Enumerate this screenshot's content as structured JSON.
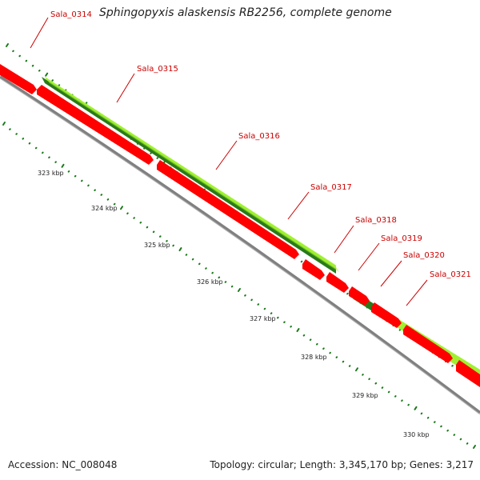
{
  "header": {
    "title": "Sphingopyxis alaskensis RB2256, complete genome"
  },
  "footer": {
    "accession": "Accession: NC_008048",
    "topology": "Topology: circular; Length: 3,345,170 bp; Genes: 3,217"
  },
  "colors": {
    "forward_gene": "#a0f030",
    "forward_gene_dark": "#2a7a1a",
    "reverse_gene": "#ff0000",
    "backbone": "#808080",
    "tick": "#1a7a1a",
    "gene_label": "#cc0000"
  },
  "genes": [
    {
      "name": "Sala_0314"
    },
    {
      "name": "Sala_0315"
    },
    {
      "name": "Sala_0316"
    },
    {
      "name": "Sala_0317"
    },
    {
      "name": "Sala_0318"
    },
    {
      "name": "Sala_0319"
    },
    {
      "name": "Sala_0320"
    },
    {
      "name": "Sala_0321"
    }
  ],
  "scale": {
    "labels": [
      "323 kbp",
      "324 kbp",
      "325 kbp",
      "326 kbp",
      "327 kbp",
      "328 kbp",
      "329 kbp",
      "330 kbp"
    ]
  }
}
